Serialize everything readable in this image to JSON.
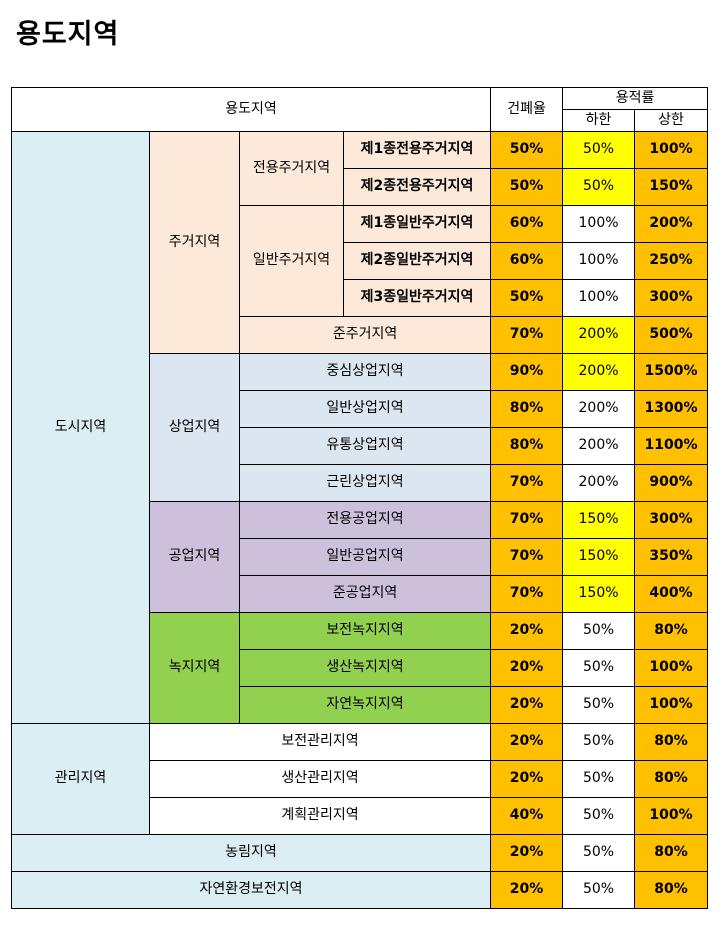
{
  "title": "용도지역",
  "header": {
    "zone": "용도지역",
    "coverage": "건폐율",
    "far": "용적률",
    "far_min": "하한",
    "far_max": "상한"
  },
  "groups": {
    "city": "도시지역",
    "residential": "주거지역",
    "exclusive_residential": "전용주거지역",
    "general_residential": "일반주거지역",
    "commercial": "상업지역",
    "industrial": "공업지역",
    "green": "녹지지역",
    "management": "관리지역"
  },
  "rows": [
    {
      "name": "제1종전용주거지역",
      "coverage": "50%",
      "far_min": "50%",
      "far_max": "100%"
    },
    {
      "name": "제2종전용주거지역",
      "coverage": "50%",
      "far_min": "50%",
      "far_max": "150%"
    },
    {
      "name": "제1종일반주거지역",
      "coverage": "60%",
      "far_min": "100%",
      "far_max": "200%"
    },
    {
      "name": "제2종일반주거지역",
      "coverage": "60%",
      "far_min": "100%",
      "far_max": "250%"
    },
    {
      "name": "제3종일반주거지역",
      "coverage": "50%",
      "far_min": "100%",
      "far_max": "300%"
    },
    {
      "name": "준주거지역",
      "coverage": "70%",
      "far_min": "200%",
      "far_max": "500%"
    },
    {
      "name": "중심상업지역",
      "coverage": "90%",
      "far_min": "200%",
      "far_max": "1500%"
    },
    {
      "name": "일반상업지역",
      "coverage": "80%",
      "far_min": "200%",
      "far_max": "1300%"
    },
    {
      "name": "유통상업지역",
      "coverage": "80%",
      "far_min": "200%",
      "far_max": "1100%"
    },
    {
      "name": "근린상업지역",
      "coverage": "70%",
      "far_min": "200%",
      "far_max": "900%"
    },
    {
      "name": "전용공업지역",
      "coverage": "70%",
      "far_min": "150%",
      "far_max": "300%"
    },
    {
      "name": "일반공업지역",
      "coverage": "70%",
      "far_min": "150%",
      "far_max": "350%"
    },
    {
      "name": "준공업지역",
      "coverage": "70%",
      "far_min": "150%",
      "far_max": "400%"
    },
    {
      "name": "보전녹지지역",
      "coverage": "20%",
      "far_min": "50%",
      "far_max": "80%"
    },
    {
      "name": "생산녹지지역",
      "coverage": "20%",
      "far_min": "50%",
      "far_max": "100%"
    },
    {
      "name": "자연녹지지역",
      "coverage": "20%",
      "far_min": "50%",
      "far_max": "100%"
    },
    {
      "name": "보전관리지역",
      "coverage": "20%",
      "far_min": "50%",
      "far_max": "80%"
    },
    {
      "name": "생산관리지역",
      "coverage": "20%",
      "far_min": "50%",
      "far_max": "80%"
    },
    {
      "name": "계획관리지역",
      "coverage": "40%",
      "far_min": "50%",
      "far_max": "100%"
    },
    {
      "name": "농림지역",
      "coverage": "20%",
      "far_min": "50%",
      "far_max": "80%"
    },
    {
      "name": "자연환경보전지역",
      "coverage": "20%",
      "far_min": "50%",
      "far_max": "80%"
    }
  ],
  "colors": {
    "city": "#daeef3",
    "residential": "#fde9d9",
    "commercial": "#dce6f1",
    "industrial": "#ccc0da",
    "green": "#92d050",
    "coverage_and_max": "#ffc000",
    "min_highlight": "#ffff00"
  }
}
